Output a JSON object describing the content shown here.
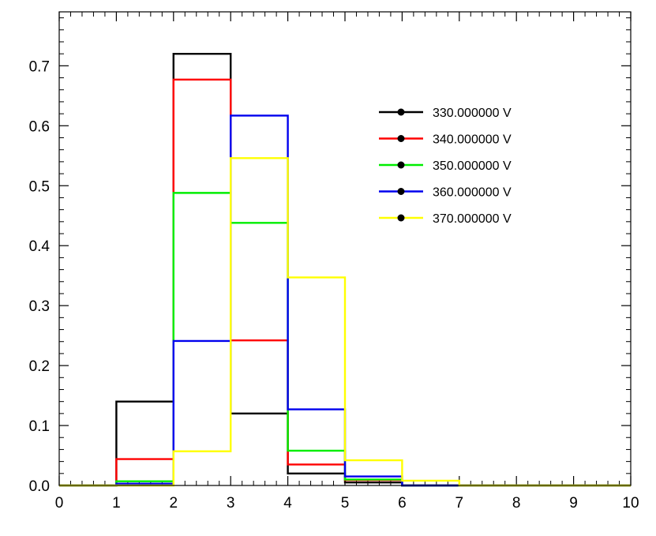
{
  "chart_data": {
    "type": "histogram",
    "title": "",
    "xlabel": "",
    "ylabel": "",
    "xlim": [
      0,
      10
    ],
    "ylim": [
      0,
      0.79
    ],
    "grid": false,
    "legend_position": "top-right",
    "bin_edges": [
      0,
      1,
      2,
      3,
      4,
      5,
      6,
      7,
      8,
      9,
      10
    ],
    "x_ticks": [
      "0",
      "1",
      "2",
      "3",
      "4",
      "5",
      "6",
      "7",
      "8",
      "9",
      "10"
    ],
    "x_tick_values": [
      0,
      1,
      2,
      3,
      4,
      5,
      6,
      7,
      8,
      9,
      10
    ],
    "y_ticks": [
      "0.0",
      "0.1",
      "0.2",
      "0.3",
      "0.4",
      "0.5",
      "0.6",
      "0.7"
    ],
    "y_tick_values": [
      0,
      0.1,
      0.2,
      0.3,
      0.4,
      0.5,
      0.6,
      0.7
    ],
    "series": [
      {
        "name": "330.000000 V",
        "color": "#000000",
        "values": [
          0,
          0.14,
          0.72,
          0.12,
          0.02,
          0.005,
          0,
          0,
          0,
          0
        ]
      },
      {
        "name": "340.000000 V",
        "color": "#ff0000",
        "values": [
          0,
          0.044,
          0.677,
          0.242,
          0.035,
          0.009,
          0,
          0,
          0,
          0
        ]
      },
      {
        "name": "350.000000 V",
        "color": "#00ee00",
        "values": [
          0,
          0.007,
          0.488,
          0.438,
          0.058,
          0.01,
          0,
          0,
          0,
          0
        ]
      },
      {
        "name": "360.000000 V",
        "color": "#0000ee",
        "values": [
          0,
          0.003,
          0.241,
          0.617,
          0.127,
          0.015,
          0,
          0,
          0,
          0
        ]
      },
      {
        "name": "370.000000 V",
        "color": "#ffff00",
        "values": [
          0,
          0.0,
          0.057,
          0.546,
          0.347,
          0.042,
          0.008,
          0,
          0,
          0
        ]
      }
    ]
  }
}
